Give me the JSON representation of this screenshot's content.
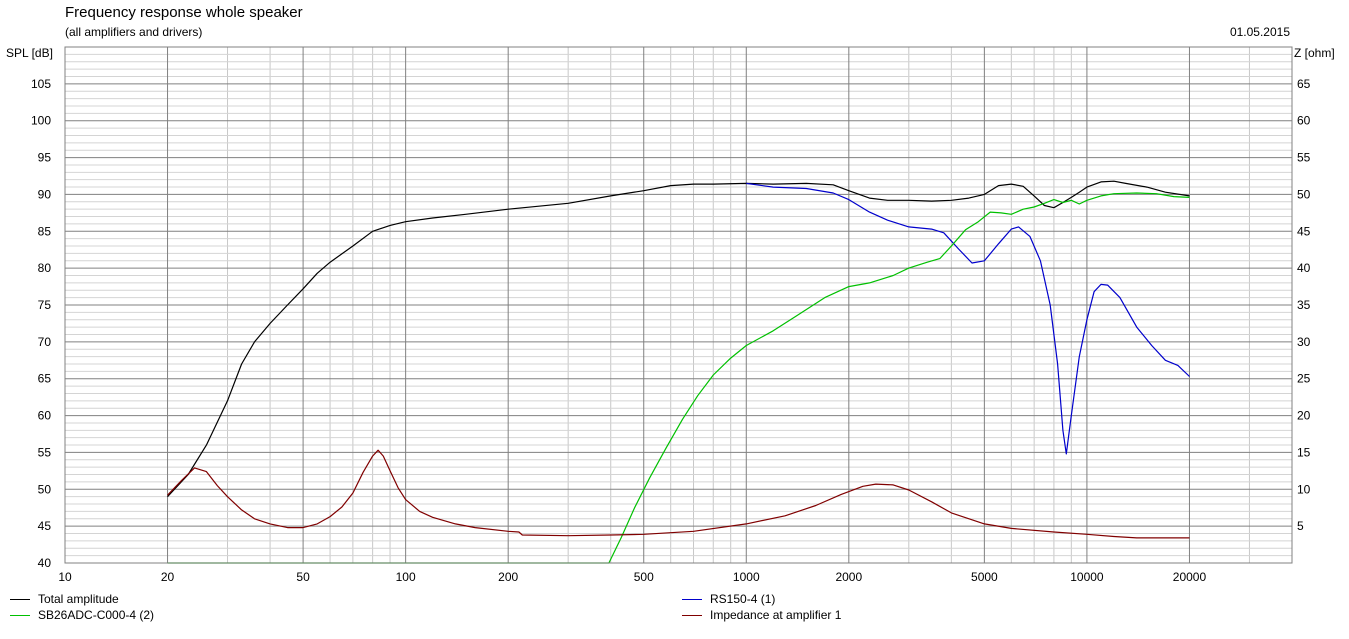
{
  "header": {
    "title": "Frequency response whole speaker",
    "subtitle": "(all amplifiers and drivers)",
    "date": "01.05.2015"
  },
  "chart_data": {
    "type": "line",
    "xscale": "log",
    "xlim": [
      10,
      40000
    ],
    "ylim": [
      40,
      110
    ],
    "y2lim": [
      0,
      70
    ],
    "ylabel": "SPL [dB]",
    "y2label": "Z [ohm]",
    "xticks": [
      10,
      20,
      50,
      100,
      200,
      500,
      1000,
      2000,
      5000,
      10000,
      20000
    ],
    "xtick_labels": [
      "10",
      "20",
      "50",
      "100",
      "200",
      "500",
      "1000",
      "2000",
      "5000",
      "10000",
      "20000"
    ],
    "yticks": [
      40,
      45,
      50,
      55,
      60,
      65,
      70,
      75,
      80,
      85,
      90,
      95,
      100,
      105
    ],
    "ytick_labels": [
      "40",
      "45",
      "50",
      "55",
      "60",
      "65",
      "70",
      "75",
      "80",
      "85",
      "90",
      "95",
      "100",
      "105"
    ],
    "y2ticks": [
      5,
      10,
      15,
      20,
      25,
      30,
      35,
      40,
      45,
      50,
      55,
      60,
      65
    ],
    "y2tick_labels": [
      "5",
      "10",
      "15",
      "20",
      "25",
      "30",
      "35",
      "40",
      "45",
      "50",
      "55",
      "60",
      "65"
    ],
    "grid": true,
    "series": [
      {
        "name": "Total amplitude",
        "color": "#000000",
        "axis": "left",
        "points": [
          [
            20,
            49
          ],
          [
            23,
            52
          ],
          [
            26,
            56
          ],
          [
            30,
            62
          ],
          [
            33,
            67
          ],
          [
            36,
            70
          ],
          [
            40,
            72.5
          ],
          [
            45,
            75
          ],
          [
            50,
            77.2
          ],
          [
            55,
            79.3
          ],
          [
            60,
            80.8
          ],
          [
            70,
            83
          ],
          [
            80,
            85
          ],
          [
            90,
            85.8
          ],
          [
            100,
            86.3
          ],
          [
            120,
            86.8
          ],
          [
            150,
            87.3
          ],
          [
            200,
            88
          ],
          [
            300,
            88.8
          ],
          [
            400,
            89.8
          ],
          [
            500,
            90.5
          ],
          [
            600,
            91.2
          ],
          [
            700,
            91.4
          ],
          [
            800,
            91.4
          ],
          [
            1000,
            91.5
          ],
          [
            1200,
            91.4
          ],
          [
            1500,
            91.5
          ],
          [
            1800,
            91.3
          ],
          [
            2000,
            90.5
          ],
          [
            2300,
            89.5
          ],
          [
            2600,
            89.2
          ],
          [
            3000,
            89.2
          ],
          [
            3500,
            89.1
          ],
          [
            4000,
            89.2
          ],
          [
            4500,
            89.5
          ],
          [
            5000,
            90
          ],
          [
            5500,
            91.2
          ],
          [
            6000,
            91.4
          ],
          [
            6500,
            91.1
          ],
          [
            7000,
            89.8
          ],
          [
            7500,
            88.5
          ],
          [
            8000,
            88.2
          ],
          [
            8500,
            88.9
          ],
          [
            9000,
            89.6
          ],
          [
            9500,
            90.3
          ],
          [
            10000,
            91
          ],
          [
            11000,
            91.7
          ],
          [
            12000,
            91.8
          ],
          [
            13000,
            91.5
          ],
          [
            15000,
            91
          ],
          [
            17000,
            90.3
          ],
          [
            20000,
            89.8
          ]
        ]
      },
      {
        "name": "RS150-4 (1)",
        "color": "#0000cc",
        "axis": "left",
        "points": [
          [
            1000,
            91.5
          ],
          [
            1200,
            91
          ],
          [
            1500,
            90.8
          ],
          [
            1800,
            90.2
          ],
          [
            2000,
            89.3
          ],
          [
            2300,
            87.6
          ],
          [
            2600,
            86.5
          ],
          [
            3000,
            85.6
          ],
          [
            3500,
            85.3
          ],
          [
            3800,
            84.8
          ],
          [
            4200,
            82.6
          ],
          [
            4600,
            80.7
          ],
          [
            5000,
            81
          ],
          [
            5500,
            83.3
          ],
          [
            6000,
            85.3
          ],
          [
            6300,
            85.6
          ],
          [
            6800,
            84.3
          ],
          [
            7300,
            81
          ],
          [
            7800,
            75
          ],
          [
            8200,
            67
          ],
          [
            8500,
            58
          ],
          [
            8700,
            54.8
          ],
          [
            9000,
            60
          ],
          [
            9500,
            68
          ],
          [
            10000,
            73
          ],
          [
            10500,
            76.8
          ],
          [
            11000,
            77.8
          ],
          [
            11500,
            77.7
          ],
          [
            12500,
            76
          ],
          [
            14000,
            72
          ],
          [
            15500,
            69.5
          ],
          [
            17000,
            67.5
          ],
          [
            18500,
            66.8
          ],
          [
            20000,
            65.3
          ]
        ]
      },
      {
        "name": "SB26ADC-C000-4 (2)",
        "color": "#00c000",
        "axis": "left",
        "points": [
          [
            20,
            40
          ],
          [
            395,
            40
          ],
          [
            430,
            43.5
          ],
          [
            470,
            47.5
          ],
          [
            520,
            51.5
          ],
          [
            580,
            55.5
          ],
          [
            650,
            59.5
          ],
          [
            720,
            62.7
          ],
          [
            800,
            65.5
          ],
          [
            900,
            67.8
          ],
          [
            1000,
            69.5
          ],
          [
            1200,
            71.5
          ],
          [
            1400,
            73.5
          ],
          [
            1700,
            76
          ],
          [
            2000,
            77.5
          ],
          [
            2300,
            78
          ],
          [
            2700,
            79
          ],
          [
            3000,
            80
          ],
          [
            3400,
            80.8
          ],
          [
            3700,
            81.3
          ],
          [
            4000,
            83
          ],
          [
            4400,
            85.2
          ],
          [
            4800,
            86.3
          ],
          [
            5200,
            87.6
          ],
          [
            5600,
            87.5
          ],
          [
            6000,
            87.3
          ],
          [
            6500,
            88
          ],
          [
            7000,
            88.3
          ],
          [
            7500,
            88.8
          ],
          [
            8000,
            89.3
          ],
          [
            8500,
            88.9
          ],
          [
            9000,
            89.2
          ],
          [
            9500,
            88.7
          ],
          [
            10000,
            89.2
          ],
          [
            11000,
            89.8
          ],
          [
            12000,
            90.1
          ],
          [
            14000,
            90.2
          ],
          [
            16000,
            90.1
          ],
          [
            18000,
            89.7
          ],
          [
            20000,
            89.6
          ]
        ]
      },
      {
        "name": "Impedance at amplifier 1",
        "color": "#800000",
        "axis": "right",
        "points": [
          [
            20,
            9.2
          ],
          [
            22,
            11.2
          ],
          [
            24,
            12.9
          ],
          [
            26,
            12.4
          ],
          [
            28,
            10.5
          ],
          [
            30,
            9
          ],
          [
            33,
            7.2
          ],
          [
            36,
            6
          ],
          [
            40,
            5.3
          ],
          [
            45,
            4.8
          ],
          [
            50,
            4.8
          ],
          [
            55,
            5.3
          ],
          [
            60,
            6.3
          ],
          [
            65,
            7.6
          ],
          [
            70,
            9.5
          ],
          [
            75,
            12.3
          ],
          [
            80,
            14.5
          ],
          [
            83,
            15.3
          ],
          [
            86,
            14.5
          ],
          [
            90,
            12.5
          ],
          [
            95,
            10.2
          ],
          [
            100,
            8.6
          ],
          [
            110,
            7
          ],
          [
            120,
            6.2
          ],
          [
            140,
            5.3
          ],
          [
            160,
            4.8
          ],
          [
            200,
            4.3
          ],
          [
            215,
            4.2
          ],
          [
            220,
            3.8
          ],
          [
            300,
            3.7
          ],
          [
            400,
            3.8
          ],
          [
            500,
            3.9
          ],
          [
            700,
            4.3
          ],
          [
            1000,
            5.3
          ],
          [
            1300,
            6.4
          ],
          [
            1600,
            7.8
          ],
          [
            1900,
            9.3
          ],
          [
            2200,
            10.4
          ],
          [
            2400,
            10.7
          ],
          [
            2700,
            10.6
          ],
          [
            3000,
            9.9
          ],
          [
            3500,
            8.3
          ],
          [
            4000,
            6.8
          ],
          [
            5000,
            5.3
          ],
          [
            6000,
            4.7
          ],
          [
            8000,
            4.2
          ],
          [
            10000,
            3.9
          ],
          [
            12000,
            3.6
          ],
          [
            14000,
            3.4
          ],
          [
            20000,
            3.4
          ]
        ]
      }
    ]
  }
}
